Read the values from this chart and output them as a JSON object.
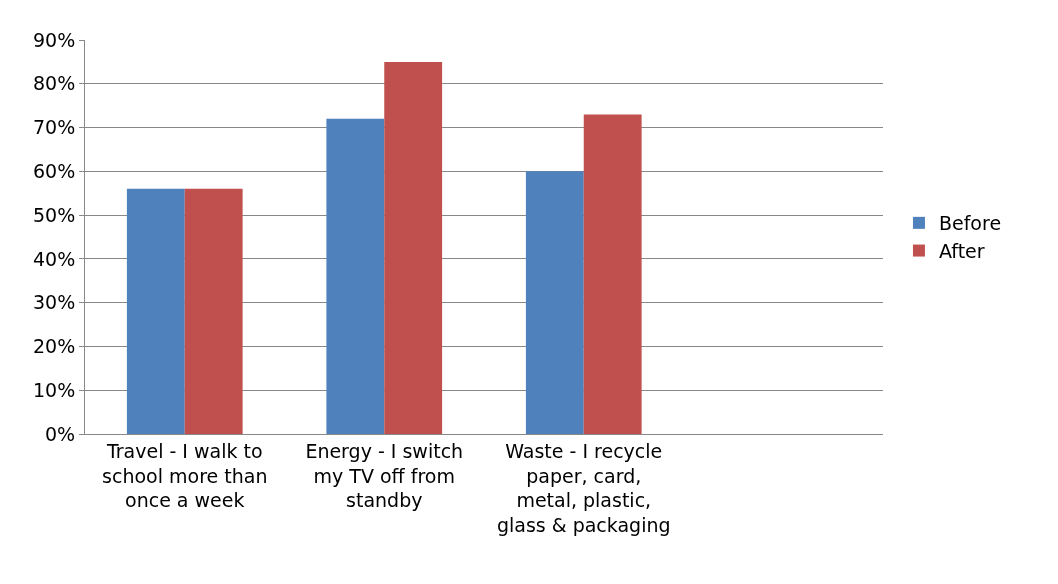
{
  "chart_data": {
    "type": "bar",
    "categories": [
      "Travel - I walk to school more than once a week",
      "Energy - I switch my TV off from standby",
      "Waste - I recycle paper, card, metal, plastic, glass & packaging",
      null
    ],
    "series": [
      {
        "name": "Before",
        "color": "#4f81bd",
        "values": [
          56,
          72,
          60,
          null
        ]
      },
      {
        "name": "After",
        "color": "#c0504d",
        "values": [
          56,
          85,
          73,
          null
        ]
      }
    ],
    "ylim": [
      0,
      90
    ],
    "yticks": [
      {
        "value": 0,
        "label": "0%"
      },
      {
        "value": 10,
        "label": "10%"
      },
      {
        "value": 20,
        "label": "20%"
      },
      {
        "value": 30,
        "label": "30%"
      },
      {
        "value": 40,
        "label": "40%"
      },
      {
        "value": 50,
        "label": "50%"
      },
      {
        "value": 60,
        "label": "60%"
      },
      {
        "value": 70,
        "label": "70%"
      },
      {
        "value": 80,
        "label": "80%"
      },
      {
        "value": 90,
        "label": "90%"
      }
    ],
    "grid": "y",
    "legend": "right"
  }
}
